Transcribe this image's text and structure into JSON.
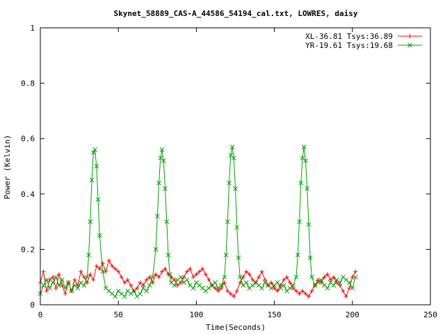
{
  "chart_data": {
    "type": "scatter",
    "title": "Skynet_58889_CAS-A_44586_54194_cal.txt, LOWRES, daisy",
    "xlabel": "Time(Seconds)",
    "ylabel": "Power (Kelvin)",
    "xlim": [
      0,
      250
    ],
    "ylim": [
      0,
      1
    ],
    "xticks": [
      0,
      50,
      100,
      150,
      200,
      250
    ],
    "yticks": [
      0,
      0.2,
      0.4,
      0.6,
      0.8,
      1
    ],
    "ytick_labels": [
      "0",
      "0.2",
      "0.4",
      "0.6",
      "0.8",
      "1"
    ],
    "grid": false,
    "legend_position": "top-right",
    "series": [
      {
        "name": "XL-36.81 Tsys:36.89",
        "color": "#ff0000",
        "marker": "plus",
        "x": [
          0,
          2,
          4,
          6,
          8,
          10,
          12,
          14,
          16,
          18,
          20,
          22,
          24,
          26,
          28,
          30,
          32,
          34,
          36,
          38,
          40,
          42,
          44,
          46,
          48,
          50,
          52,
          54,
          56,
          58,
          60,
          62,
          64,
          66,
          68,
          70,
          72,
          74,
          76,
          78,
          80,
          82,
          84,
          86,
          88,
          90,
          92,
          94,
          96,
          98,
          100,
          102,
          104,
          106,
          108,
          110,
          112,
          114,
          116,
          118,
          120,
          122,
          124,
          126,
          128,
          130,
          132,
          134,
          136,
          138,
          140,
          142,
          144,
          146,
          148,
          150,
          152,
          154,
          156,
          158,
          160,
          162,
          164,
          166,
          168,
          170,
          172,
          174,
          176,
          178,
          180,
          182,
          184,
          186,
          188,
          190,
          192,
          194,
          196,
          198,
          200,
          202
        ],
        "y": [
          0.08,
          0.12,
          0.05,
          0.09,
          0.1,
          0.06,
          0.11,
          0.07,
          0.04,
          0.08,
          0.05,
          0.09,
          0.07,
          0.12,
          0.1,
          0.08,
          0.11,
          0.09,
          0.14,
          0.13,
          0.15,
          0.12,
          0.16,
          0.14,
          0.13,
          0.12,
          0.1,
          0.08,
          0.09,
          0.07,
          0.05,
          0.06,
          0.08,
          0.07,
          0.09,
          0.1,
          0.08,
          0.11,
          0.1,
          0.12,
          0.13,
          0.11,
          0.1,
          0.09,
          0.07,
          0.08,
          0.1,
          0.12,
          0.13,
          0.1,
          0.11,
          0.12,
          0.13,
          0.11,
          0.09,
          0.07,
          0.06,
          0.05,
          0.06,
          0.08,
          0.05,
          0.04,
          0.03,
          0.05,
          0.08,
          0.1,
          0.12,
          0.11,
          0.09,
          0.08,
          0.1,
          0.12,
          0.09,
          0.07,
          0.08,
          0.06,
          0.05,
          0.07,
          0.09,
          0.1,
          0.08,
          0.06,
          0.05,
          0.04,
          0.05,
          0.04,
          0.03,
          0.05,
          0.07,
          0.09,
          0.08,
          0.1,
          0.11,
          0.09,
          0.1,
          0.08,
          0.07,
          0.05,
          0.03,
          0.06,
          0.1,
          0.12
        ]
      },
      {
        "name": "YR-19.61 Tsys:19.68",
        "color": "#00a000",
        "marker": "cross",
        "x": [
          0,
          2,
          4,
          6,
          8,
          10,
          12,
          14,
          16,
          18,
          20,
          22,
          24,
          26,
          28,
          30,
          31,
          32,
          33,
          34,
          35,
          36,
          37,
          38,
          40,
          42,
          44,
          46,
          48,
          50,
          52,
          54,
          56,
          58,
          60,
          62,
          64,
          66,
          68,
          70,
          72,
          74,
          75,
          76,
          77,
          78,
          79,
          80,
          81,
          82,
          83,
          84,
          86,
          88,
          90,
          92,
          94,
          96,
          98,
          100,
          102,
          104,
          106,
          108,
          110,
          112,
          114,
          116,
          118,
          119,
          120,
          121,
          122,
          123,
          124,
          125,
          126,
          127,
          128,
          130,
          132,
          134,
          136,
          138,
          140,
          142,
          144,
          146,
          148,
          150,
          152,
          154,
          156,
          158,
          160,
          162,
          164,
          165,
          166,
          167,
          168,
          169,
          170,
          171,
          172,
          173,
          174,
          176,
          178,
          180,
          182,
          184,
          186,
          188,
          190,
          192,
          194,
          196,
          198,
          200,
          202
        ],
        "y": [
          0.04,
          0.07,
          0.09,
          0.06,
          0.08,
          0.1,
          0.07,
          0.09,
          0.06,
          0.08,
          0.05,
          0.07,
          0.06,
          0.08,
          0.07,
          0.1,
          0.18,
          0.3,
          0.45,
          0.55,
          0.56,
          0.5,
          0.38,
          0.25,
          0.12,
          0.06,
          0.05,
          0.04,
          0.03,
          0.05,
          0.04,
          0.03,
          0.05,
          0.04,
          0.05,
          0.03,
          0.04,
          0.06,
          0.05,
          0.07,
          0.1,
          0.2,
          0.32,
          0.44,
          0.53,
          0.56,
          0.52,
          0.42,
          0.3,
          0.18,
          0.11,
          0.08,
          0.07,
          0.09,
          0.1,
          0.08,
          0.09,
          0.07,
          0.06,
          0.08,
          0.07,
          0.06,
          0.05,
          0.06,
          0.07,
          0.08,
          0.06,
          0.07,
          0.1,
          0.18,
          0.3,
          0.44,
          0.54,
          0.57,
          0.53,
          0.42,
          0.28,
          0.17,
          0.1,
          0.07,
          0.08,
          0.06,
          0.07,
          0.08,
          0.07,
          0.06,
          0.08,
          0.07,
          0.06,
          0.07,
          0.08,
          0.06,
          0.07,
          0.05,
          0.06,
          0.07,
          0.1,
          0.18,
          0.3,
          0.44,
          0.53,
          0.57,
          0.52,
          0.42,
          0.29,
          0.17,
          0.1,
          0.07,
          0.08,
          0.09,
          0.07,
          0.06,
          0.08,
          0.07,
          0.09,
          0.08,
          0.1,
          0.09,
          0.08,
          0.06,
          0.1
        ]
      }
    ]
  }
}
